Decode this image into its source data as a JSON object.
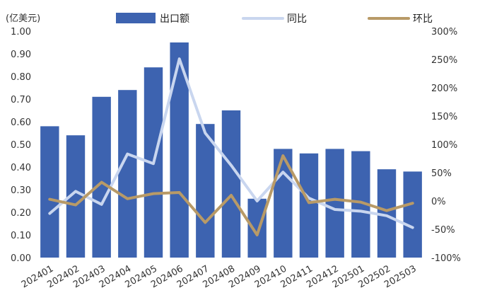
{
  "chart_data": {
    "type": "bar+line",
    "unit_label": "(亿美元)",
    "categories": [
      "202401",
      "202402",
      "202403",
      "202404",
      "202405",
      "202406",
      "202407",
      "202408",
      "202409",
      "202410",
      "202411",
      "202412",
      "202501",
      "202502",
      "202503"
    ],
    "series": [
      {
        "name": "出口额",
        "type": "bar",
        "axis": "left",
        "color": "#3d63b0",
        "values": [
          0.58,
          0.54,
          0.71,
          0.74,
          0.84,
          0.95,
          0.59,
          0.65,
          0.26,
          0.48,
          0.46,
          0.48,
          0.47,
          0.39,
          0.38
        ]
      },
      {
        "name": "同比",
        "type": "line",
        "axis": "right",
        "color": "#c9d6ef",
        "values": [
          -0.22,
          0.17,
          -0.06,
          0.83,
          0.66,
          2.51,
          1.2,
          0.63,
          0.0,
          0.51,
          0.05,
          -0.15,
          -0.18,
          -0.26,
          -0.47
        ]
      },
      {
        "name": "环比",
        "type": "line",
        "axis": "right",
        "color": "#b89a67",
        "values": [
          0.03,
          -0.07,
          0.33,
          0.04,
          0.13,
          0.15,
          -0.38,
          0.1,
          -0.6,
          0.8,
          -0.03,
          0.03,
          -0.02,
          -0.17,
          -0.04
        ]
      }
    ],
    "y_left": {
      "min": 0,
      "max": 1.0,
      "ticks": [
        "0.00",
        "0.10",
        "0.20",
        "0.30",
        "0.40",
        "0.50",
        "0.60",
        "0.70",
        "0.80",
        "0.90",
        "1.00"
      ]
    },
    "y_right": {
      "min": -1.0,
      "max": 3.0,
      "ticks": [
        "-100%",
        "-50%",
        "0%",
        "50%",
        "100%",
        "150%",
        "200%",
        "250%",
        "300%"
      ]
    },
    "legend_position": "top",
    "grid": false
  }
}
